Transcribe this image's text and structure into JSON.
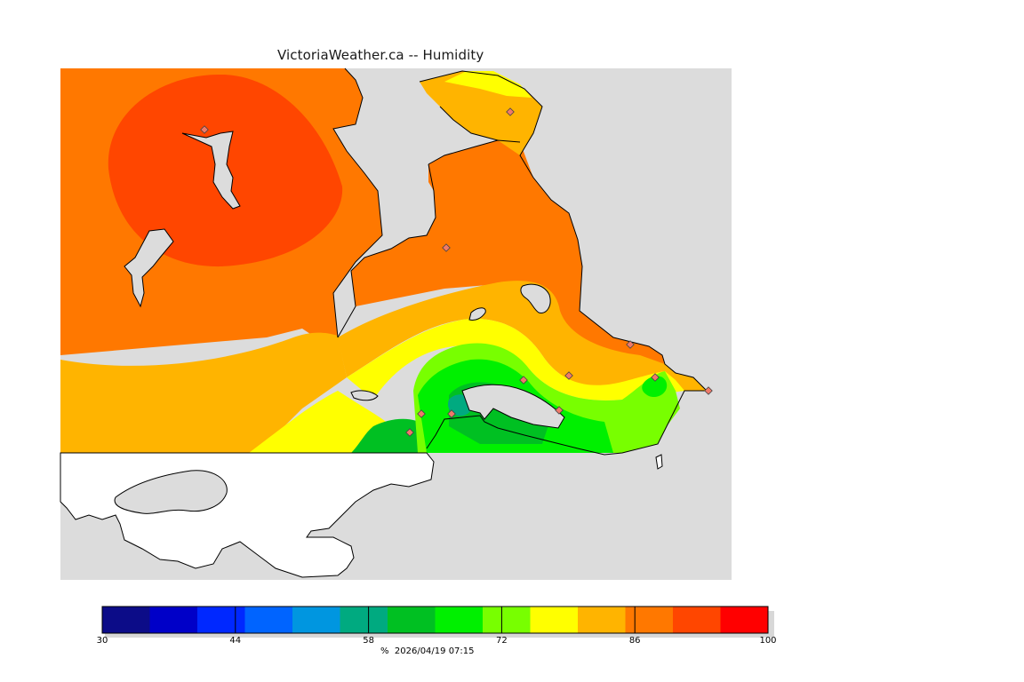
{
  "title": "VictoriaWeather.ca -- Humidity",
  "map": {
    "land_color": "#ffffff",
    "water_color": "#dcdcdc",
    "coast_color": "#000000",
    "station_marker_color": "#f07a6a"
  },
  "legend": {
    "min": 30,
    "max": 100,
    "colors": [
      "#0c0c88",
      "#0000c8",
      "#0028ff",
      "#0064ff",
      "#0096e0",
      "#00aa80",
      "#00c022",
      "#00f000",
      "#78ff00",
      "#ffff00",
      "#ffb400",
      "#ff7800",
      "#ff4600",
      "#ff0000"
    ],
    "ticks": [
      "30",
      "44",
      "58",
      "72",
      "86",
      "100"
    ],
    "unit": "%",
    "timestamp": "2026/04/19 07:15"
  }
}
